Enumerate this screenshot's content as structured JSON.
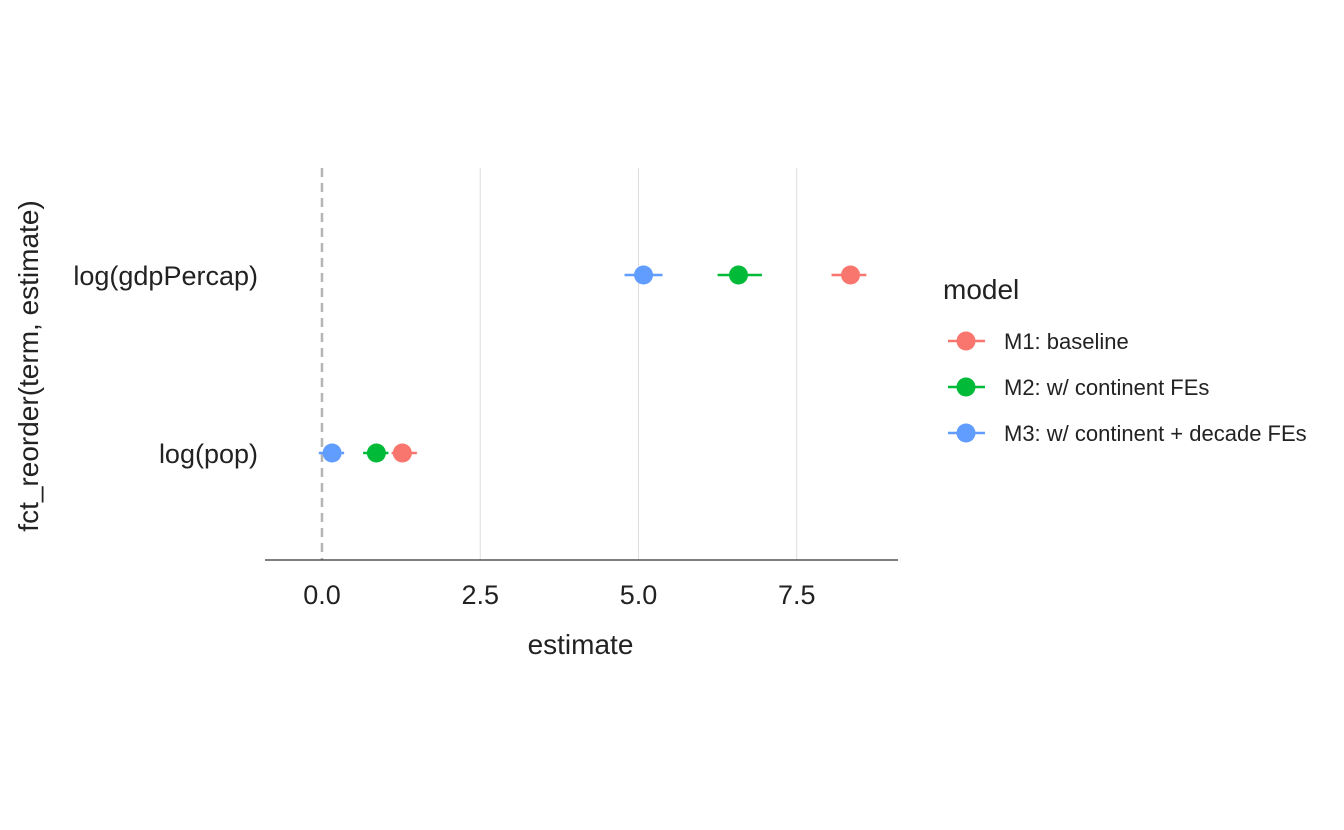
{
  "chart_data": {
    "type": "scatter",
    "title": "",
    "xlabel": "estimate",
    "ylabel": "fct_reorder(term, estimate)",
    "xlim": [
      -0.9,
      9.1
    ],
    "x_ticks": [
      0.0,
      2.5,
      5.0,
      7.5
    ],
    "x_tick_labels": [
      "0.0",
      "2.5",
      "5.0",
      "7.5"
    ],
    "categories": [
      "log(pop)",
      "log(gdpPercap)"
    ],
    "reference_line_x": 0,
    "legend_title": "model",
    "legend_position": "right",
    "series": [
      {
        "name": "M1: baseline",
        "color": "#F8766D",
        "points": [
          {
            "term": "log(gdpPercap)",
            "estimate": 8.35,
            "low": 8.05,
            "high": 8.6
          },
          {
            "term": "log(pop)",
            "estimate": 1.27,
            "low": 1.1,
            "high": 1.5
          }
        ]
      },
      {
        "name": "M2: w/ continent FEs",
        "color": "#00BA38",
        "points": [
          {
            "term": "log(gdpPercap)",
            "estimate": 6.58,
            "low": 6.25,
            "high": 6.95
          },
          {
            "term": "log(pop)",
            "estimate": 0.86,
            "low": 0.65,
            "high": 1.05
          }
        ]
      },
      {
        "name": "M3: w/ continent + decade FEs",
        "color": "#619CFF",
        "points": [
          {
            "term": "log(gdpPercap)",
            "estimate": 5.08,
            "low": 4.78,
            "high": 5.38
          },
          {
            "term": "log(pop)",
            "estimate": 0.16,
            "low": -0.05,
            "high": 0.35
          }
        ]
      }
    ]
  }
}
